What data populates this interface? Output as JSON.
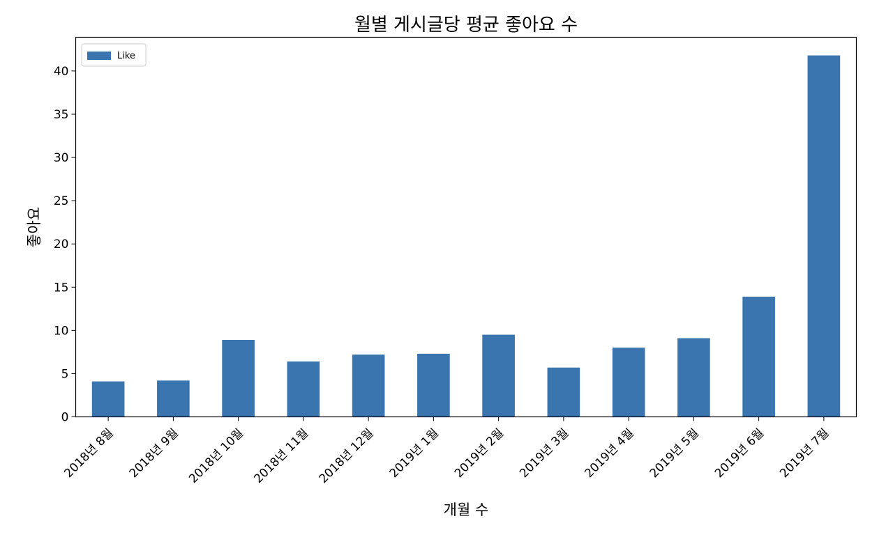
{
  "chart_data": {
    "type": "bar",
    "title": "월별 게시글당 평균 좋아요 수",
    "xlabel": "개월 수",
    "ylabel": "좋아요",
    "categories": [
      "2018년 8월",
      "2018년 9월",
      "2018년 10월",
      "2018년 11월",
      "2018년 12월",
      "2019년 1월",
      "2019년 2월",
      "2019년 3월",
      "2019년 4월",
      "2019년 5월",
      "2019년 6월",
      "2019년 7월"
    ],
    "series": [
      {
        "name": "Like",
        "values": [
          4.1,
          4.2,
          8.9,
          6.4,
          7.2,
          7.3,
          9.5,
          5.7,
          8.0,
          9.1,
          13.9,
          41.8
        ],
        "color": "#3a75b0"
      }
    ],
    "ylim": [
      0,
      43.9
    ],
    "yticks": [
      0,
      5,
      10,
      15,
      20,
      25,
      30,
      35,
      40
    ],
    "legend": "top-left",
    "grid": false
  }
}
